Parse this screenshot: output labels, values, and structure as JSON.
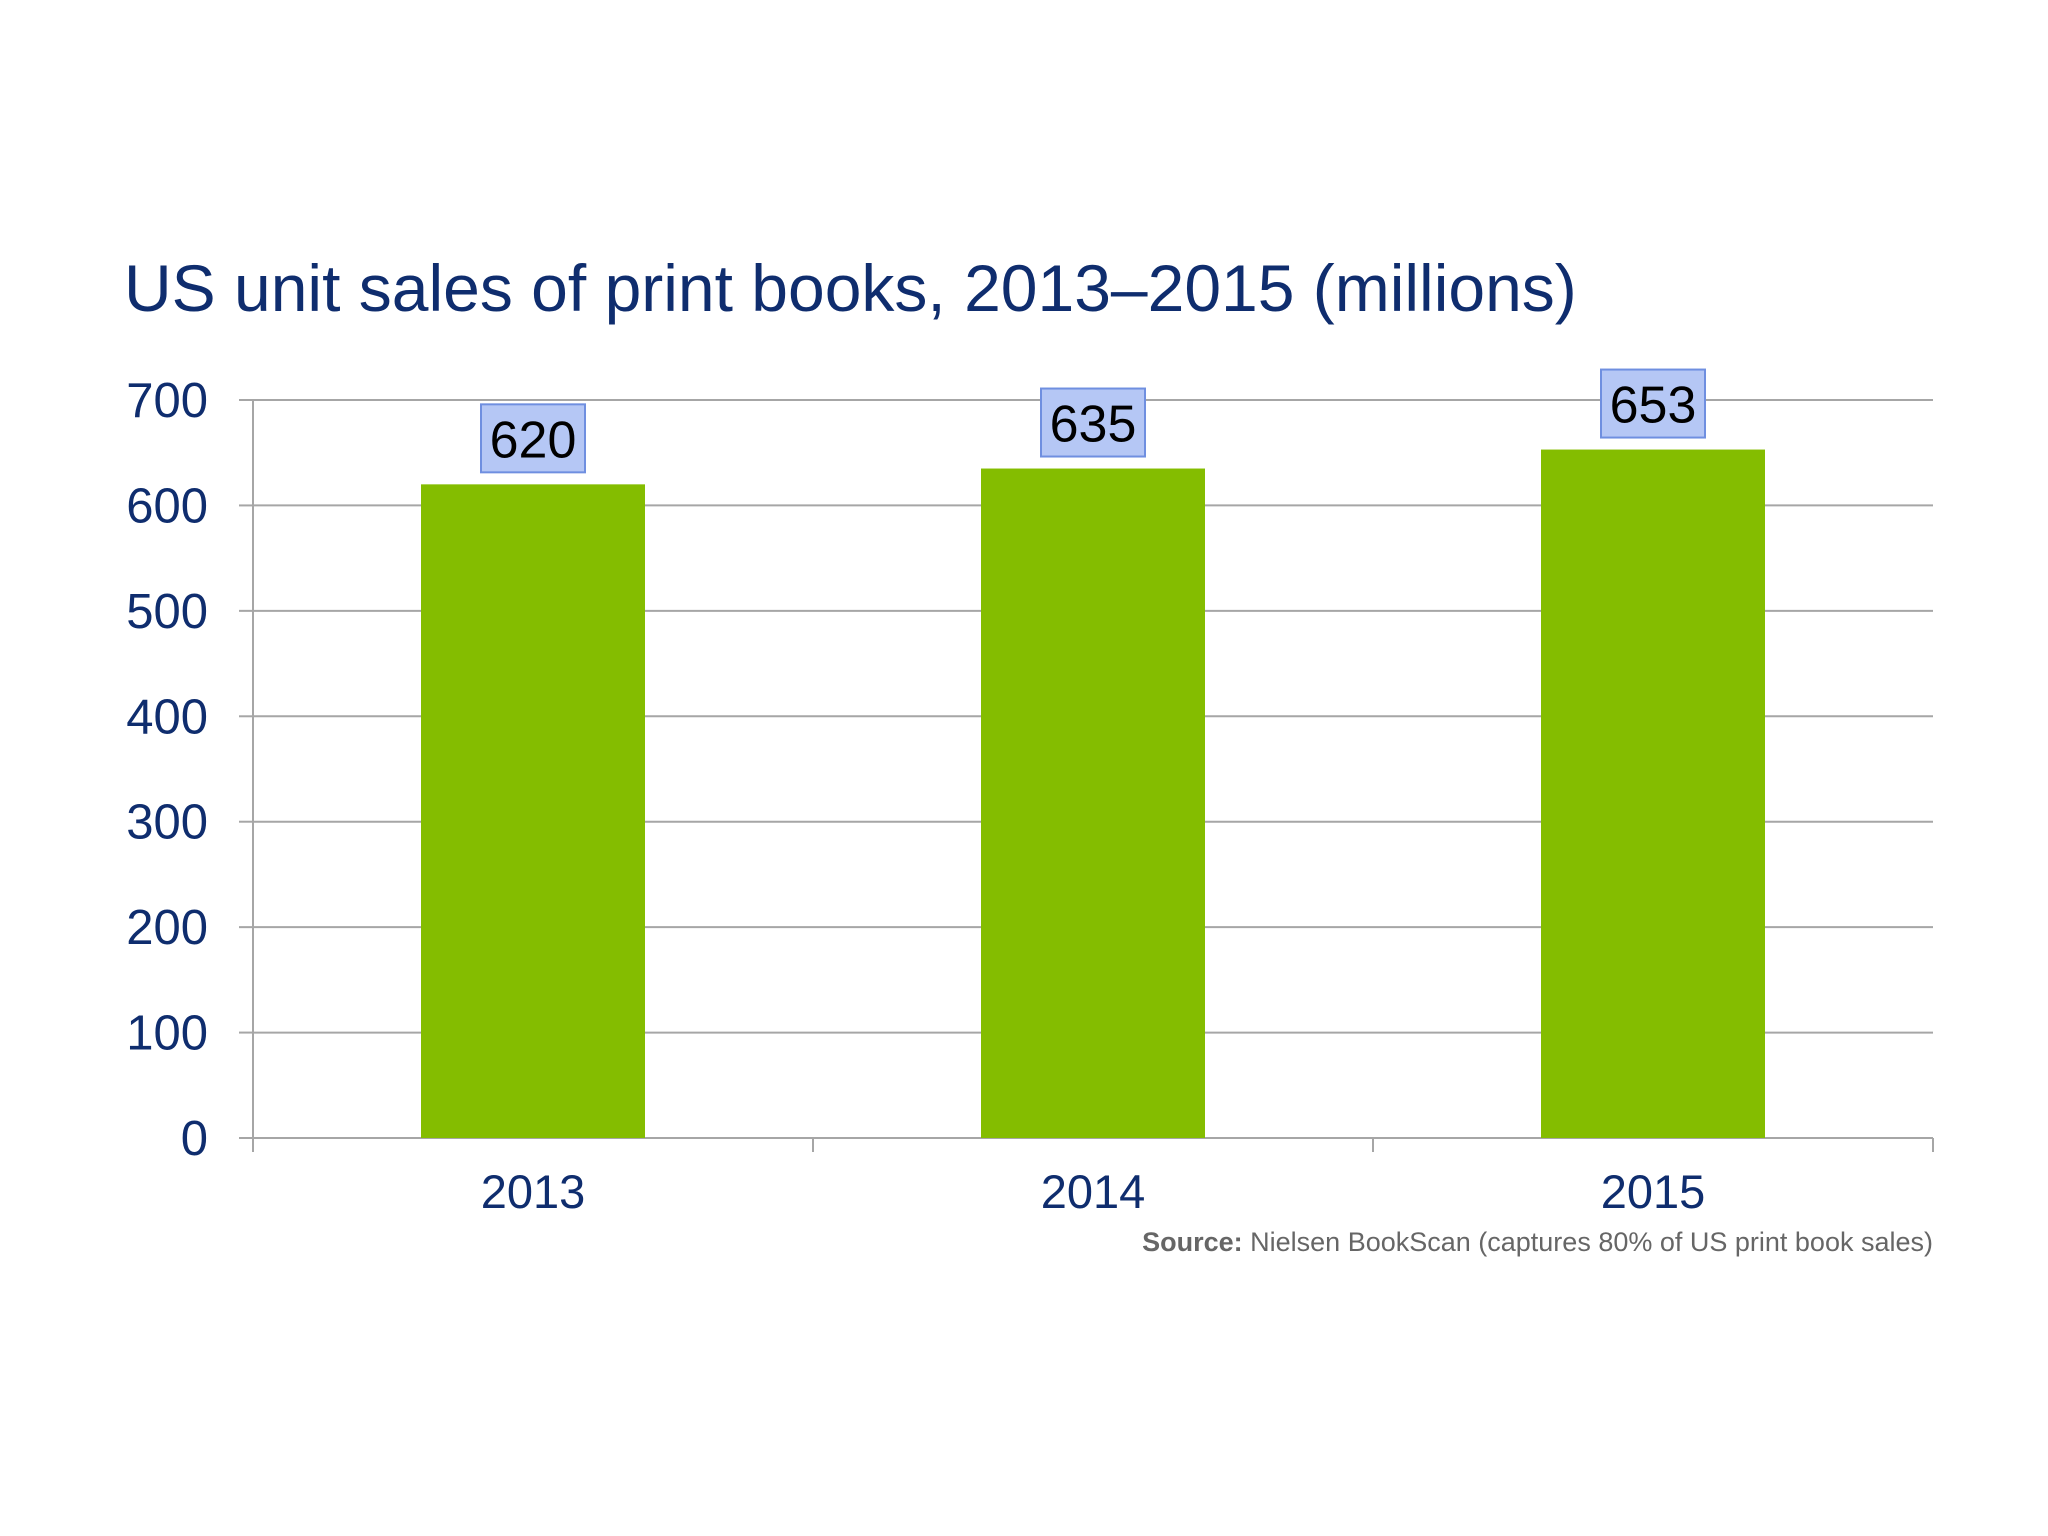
{
  "chart_data": {
    "type": "bar",
    "title": "US unit sales of print books, 2013–2015 (millions)",
    "categories": [
      "2013",
      "2014",
      "2015"
    ],
    "values": [
      620,
      635,
      653
    ],
    "data_labels": [
      "620",
      "635",
      "653"
    ],
    "ylim": [
      0,
      700
    ],
    "yticks": [
      "0",
      "100",
      "200",
      "300",
      "400",
      "500",
      "600",
      "700"
    ],
    "xlabel": "",
    "ylabel": "",
    "grid": true,
    "legend": "none",
    "colors": {
      "bar": "#84bd00",
      "label_box_fill": "#b5c7f5",
      "label_box_stroke": "#6f8fe0",
      "title": "#0f2d6e",
      "axis_text": "#0f2d6e",
      "gridline": "#a6a6a6"
    }
  },
  "source": {
    "label": "Source:",
    "text": " Nielsen BookScan (captures 80% of US print book sales)"
  }
}
